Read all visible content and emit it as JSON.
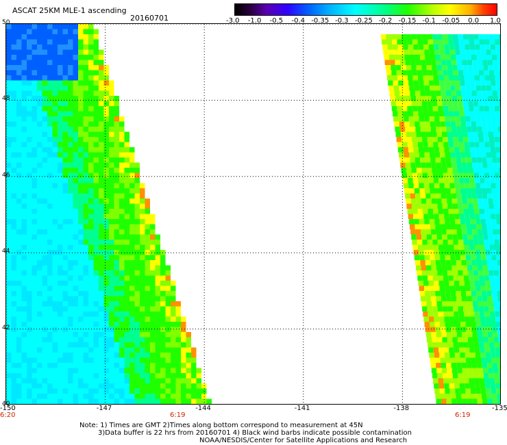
{
  "header": {
    "title": "ASCAT 25KM MLE-1 ascending",
    "date": "20160701"
  },
  "legend": {
    "ticks": [
      "-3.0",
      "-1.0",
      "-0.5",
      "-0.4",
      "-0.35",
      "-0.3",
      "-0.25",
      "-0.2",
      "-0.15",
      "-0.1",
      "-0.05",
      "0.0",
      "1.0"
    ]
  },
  "map": {
    "lat_labels": [
      "50",
      "48",
      "46",
      "44",
      "42",
      "40"
    ],
    "lon_labels": [
      "-150",
      "-147",
      "-144",
      "-141",
      "-138",
      "-135"
    ],
    "time_labels": [
      "6:20",
      "6:19",
      "6:19"
    ],
    "lon_range": [
      -150,
      -135
    ],
    "lat_range": [
      40,
      50
    ],
    "gridlines": true,
    "colors": {
      "deep_blue": "#0060ff",
      "cyan": "#00ffff",
      "green": "#20ff00",
      "yellow": "#ffff00",
      "orange": "#ff9000"
    }
  },
  "notes": {
    "line1": "Note: 1) Times are GMT 2)Times along bottom correspond to measurement at 45N",
    "line2": "3)Data buffer is 22 hrs from 20160701 4) Black wind barbs indicate possible contamination",
    "line3": "NOAA/NESDIS/Center for Satellite Applications and Research"
  }
}
